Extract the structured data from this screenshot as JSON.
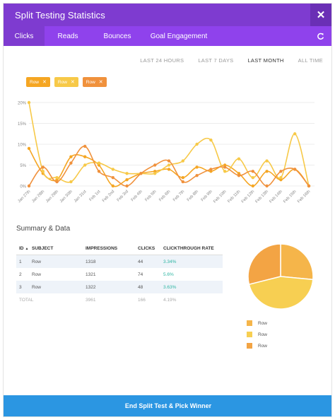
{
  "window": {
    "title": "Split Testing Statistics",
    "close_icon": "close-icon"
  },
  "tabs": [
    {
      "label": "Clicks",
      "active": true
    },
    {
      "label": "Reads",
      "active": false
    },
    {
      "label": "Bounces",
      "active": false
    },
    {
      "label": "Goal Engagement",
      "active": false
    }
  ],
  "ranges": [
    {
      "label": "LAST 24 HOURS",
      "active": false
    },
    {
      "label": "LAST 7 DAYS",
      "active": false
    },
    {
      "label": "LAST MONTH",
      "active": true
    },
    {
      "label": "ALL TIME",
      "active": false
    }
  ],
  "filters": [
    {
      "label": "Row",
      "color": "#f5a623"
    },
    {
      "label": "Row",
      "color": "#f7c948"
    },
    {
      "label": "Row",
      "color": "#f0913c"
    }
  ],
  "colors": {
    "purple_dark": "#7e3bd0",
    "purple": "#8f42ec",
    "blue": "#2b96e2",
    "teal": "#2fb6a3"
  },
  "chart_data": {
    "type": "line",
    "x": [
      "Jan 27th",
      "Jan 28th",
      "Jan 29th",
      "Jan 30th",
      "Jan 31st",
      "Feb 1st",
      "Feb 2nd",
      "Feb 3rd",
      "Feb 4th",
      "Feb 5th",
      "Feb 6th",
      "Feb 7th",
      "Feb 8th",
      "Feb 9th",
      "Feb 10th",
      "Feb 11th",
      "Feb 12th",
      "Feb 13th",
      "Feb 14th",
      "Feb 15th",
      "Feb 16th"
    ],
    "yticks": [
      "0%",
      "5%",
      "10%",
      "15%",
      "20%"
    ],
    "ylim": [
      0,
      20
    ],
    "grid": true,
    "series": [
      {
        "color": "#f5a623",
        "values": [
          9,
          3,
          1.5,
          7,
          7,
          5,
          0,
          1.5,
          3,
          3.5,
          4,
          2,
          4.5,
          3.5,
          5,
          3,
          0,
          3.5,
          1.5,
          4,
          0
        ]
      },
      {
        "color": "#f7c948",
        "values": [
          20,
          3.5,
          2,
          1,
          5,
          5.5,
          4,
          3,
          3,
          3,
          5,
          6,
          10,
          11,
          3.5,
          6.5,
          2,
          6,
          2,
          12.5,
          0
        ]
      },
      {
        "color": "#f0913c",
        "values": [
          0,
          4.5,
          1,
          5.5,
          9.5,
          3.5,
          2,
          0,
          3,
          5,
          6,
          1,
          2.5,
          4,
          4.5,
          2.5,
          3.5,
          0,
          3.5,
          4,
          0
        ]
      }
    ]
  },
  "summary": {
    "title": "Summary & Data",
    "headers": {
      "id": "ID",
      "subject": "SUBJECT",
      "impressions": "IMPRESSIONS",
      "clicks": "CLICKS",
      "ctr": "CLICKTHROUGH RATE"
    },
    "rows": [
      {
        "id": "1",
        "subject": "Row",
        "impressions": "1318",
        "clicks": "44",
        "ctr": "3.34%"
      },
      {
        "id": "2",
        "subject": "Row",
        "impressions": "1321",
        "clicks": "74",
        "ctr": "5.6%"
      },
      {
        "id": "3",
        "subject": "Row",
        "impressions": "1322",
        "clicks": "48",
        "ctr": "3.63%"
      }
    ],
    "total": {
      "label": "TOTAL",
      "impressions": "3961",
      "clicks": "166",
      "ctr": "4.19%"
    }
  },
  "pie": {
    "slices": [
      {
        "label": "Row",
        "value": 44,
        "color": "#f5b54a"
      },
      {
        "label": "Row",
        "value": 74,
        "color": "#f7cf52"
      },
      {
        "label": "Row",
        "value": 48,
        "color": "#f3a444"
      }
    ]
  },
  "footer": {
    "button_label": "End Split Test & Pick Winner"
  }
}
